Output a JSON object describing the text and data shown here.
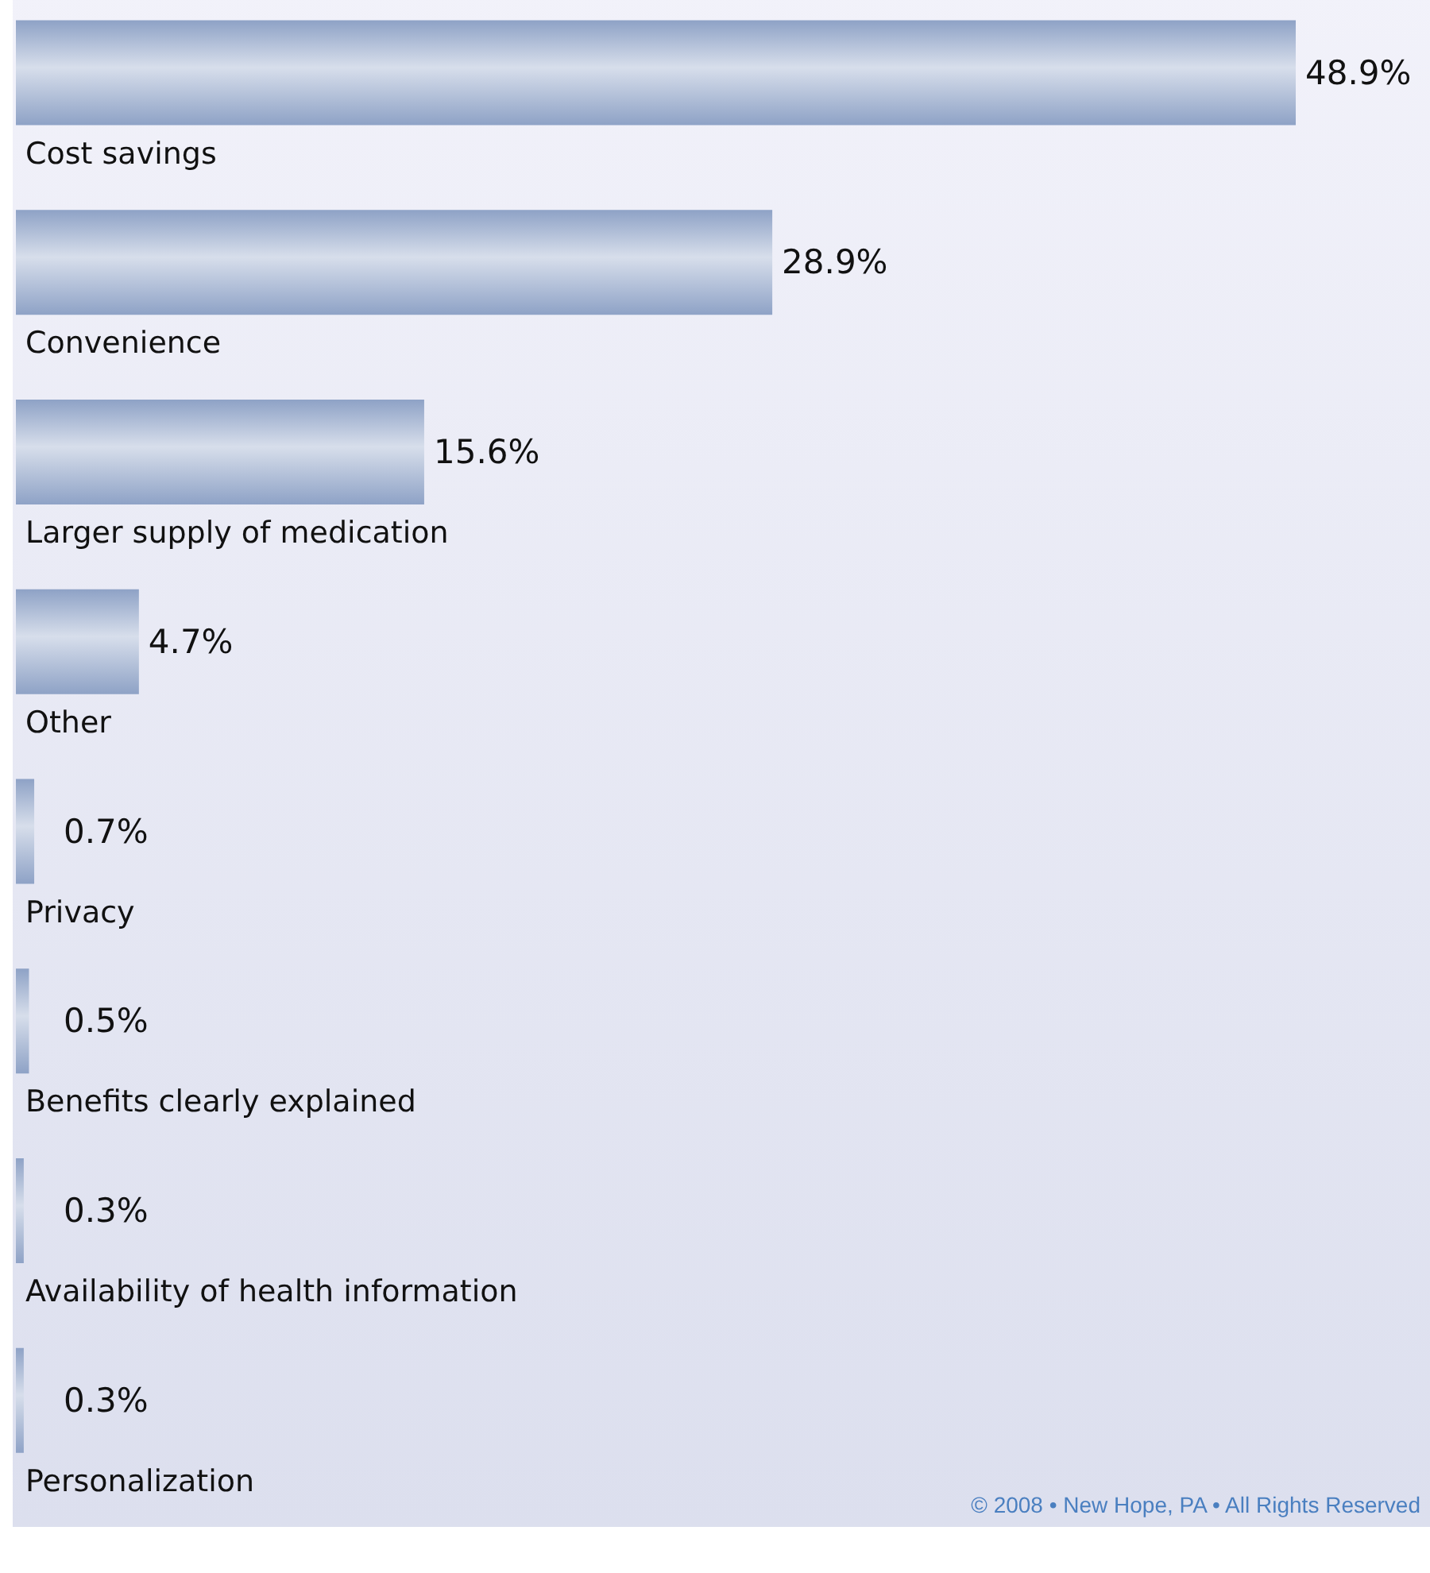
{
  "chart_data": {
    "type": "bar",
    "orientation": "horizontal",
    "categories": [
      "Cost savings",
      "Convenience",
      "Larger supply of medication",
      "Other",
      "Privacy",
      "Benefits clearly explained",
      "Availability of health information",
      "Personalization"
    ],
    "values": [
      48.9,
      28.9,
      15.6,
      4.7,
      0.7,
      0.5,
      0.3,
      0.3
    ],
    "value_labels": [
      "48.9%",
      "28.9%",
      "15.6%",
      "4.7%",
      "0.7%",
      "0.5%",
      "0.3%",
      "0.3%"
    ],
    "color": "#8ea2c6",
    "grid": false,
    "annotations": [
      "© 2008 • New Hope, PA • All Rights Reserved"
    ]
  }
}
